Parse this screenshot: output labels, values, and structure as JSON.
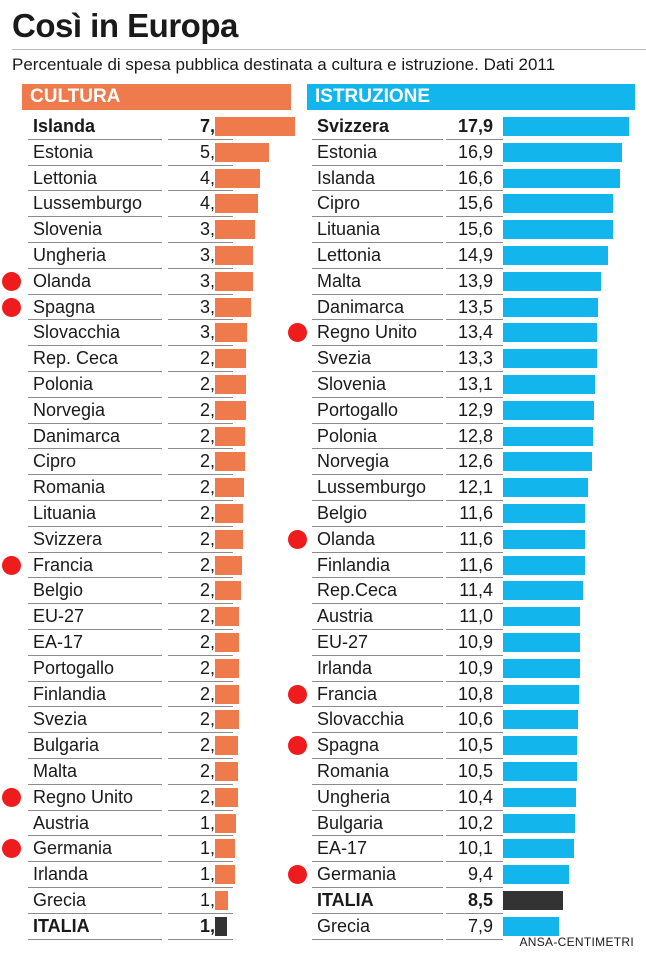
{
  "title": "Così in Europa",
  "subtitle": "Percentuale di spesa pubblica destinata a cultura e istruzione. Dati 2011",
  "source": "ANSA-CENTIMETRI",
  "colors": {
    "cultura": "#ef7a4c",
    "istruzione": "#12b6ec",
    "italia": "#333333",
    "marker": "#ee1c1c"
  },
  "chart_data": [
    {
      "type": "bar",
      "orientation": "horizontal",
      "header": "CULTURA",
      "xlim": [
        0,
        7.4
      ],
      "rows": [
        {
          "name": "Islanda",
          "value": 7.4,
          "label": "7,4",
          "bold": true,
          "marker": false
        },
        {
          "name": "Estonia",
          "value": 5.0,
          "label": "5,0",
          "bold": false,
          "marker": false
        },
        {
          "name": "Lettonia",
          "value": 4.2,
          "label": "4,2",
          "bold": false,
          "marker": false
        },
        {
          "name": "Lussemburgo",
          "value": 4.0,
          "label": "4,0",
          "bold": false,
          "marker": false
        },
        {
          "name": "Slovenia",
          "value": 3.7,
          "label": "3,7",
          "bold": false,
          "marker": false
        },
        {
          "name": "Ungheria",
          "value": 3.5,
          "label": "3,5",
          "bold": false,
          "marker": false
        },
        {
          "name": "Olanda",
          "value": 3.5,
          "label": "3,5",
          "bold": false,
          "marker": true
        },
        {
          "name": "Spagna",
          "value": 3.3,
          "label": "3,3",
          "bold": false,
          "marker": true
        },
        {
          "name": "Slovacchia",
          "value": 3.0,
          "label": "3,0",
          "bold": false,
          "marker": false
        },
        {
          "name": "Rep. Ceca",
          "value": 2.9,
          "label": "2,9",
          "bold": false,
          "marker": false
        },
        {
          "name": "Polonia",
          "value": 2.9,
          "label": "2,9",
          "bold": false,
          "marker": false
        },
        {
          "name": "Norvegia",
          "value": 2.9,
          "label": "2,9",
          "bold": false,
          "marker": false
        },
        {
          "name": "Danimarca",
          "value": 2.8,
          "label": "2,8",
          "bold": false,
          "marker": false
        },
        {
          "name": "Cipro",
          "value": 2.8,
          "label": "2,8",
          "bold": false,
          "marker": false
        },
        {
          "name": "Romania",
          "value": 2.7,
          "label": "2,7",
          "bold": false,
          "marker": false
        },
        {
          "name": "Lituania",
          "value": 2.6,
          "label": "2,6",
          "bold": false,
          "marker": false
        },
        {
          "name": "Svizzera",
          "value": 2.6,
          "label": "2,6",
          "bold": false,
          "marker": false
        },
        {
          "name": "Francia",
          "value": 2.5,
          "label": "2,5",
          "bold": false,
          "marker": true
        },
        {
          "name": "Belgio",
          "value": 2.4,
          "label": "2,4",
          "bold": false,
          "marker": false
        },
        {
          "name": "EU-27",
          "value": 2.2,
          "label": "2,2",
          "bold": false,
          "marker": false
        },
        {
          "name": "EA-17",
          "value": 2.2,
          "label": "2,2",
          "bold": false,
          "marker": false
        },
        {
          "name": "Portogallo",
          "value": 2.2,
          "label": "2,2",
          "bold": false,
          "marker": false
        },
        {
          "name": "Finlandia",
          "value": 2.2,
          "label": "2,2",
          "bold": false,
          "marker": false
        },
        {
          "name": "Svezia",
          "value": 2.2,
          "label": "2,2",
          "bold": false,
          "marker": false
        },
        {
          "name": "Bulgaria",
          "value": 2.1,
          "label": "2,1",
          "bold": false,
          "marker": false
        },
        {
          "name": "Malta",
          "value": 2.1,
          "label": "2,1",
          "bold": false,
          "marker": false
        },
        {
          "name": "Regno Unito",
          "value": 2.1,
          "label": "2,1",
          "bold": false,
          "marker": true
        },
        {
          "name": "Austria",
          "value": 1.9,
          "label": "1,9",
          "bold": false,
          "marker": false
        },
        {
          "name": "Germania",
          "value": 1.8,
          "label": "1,8",
          "bold": false,
          "marker": true
        },
        {
          "name": "Irlanda",
          "value": 1.8,
          "label": "1,8",
          "bold": false,
          "marker": false
        },
        {
          "name": "Grecia",
          "value": 1.2,
          "label": "1,2",
          "bold": false,
          "marker": false
        },
        {
          "name": "ITALIA",
          "value": 1.1,
          "label": "1,1",
          "bold": true,
          "marker": false,
          "italia": true
        }
      ]
    },
    {
      "type": "bar",
      "orientation": "horizontal",
      "header": "ISTRUZIONE",
      "xlim": [
        0,
        17.9
      ],
      "rows": [
        {
          "name": "Svizzera",
          "value": 17.9,
          "label": "17,9",
          "bold": true,
          "marker": false
        },
        {
          "name": "Estonia",
          "value": 16.9,
          "label": "16,9",
          "bold": false,
          "marker": false
        },
        {
          "name": "Islanda",
          "value": 16.6,
          "label": "16,6",
          "bold": false,
          "marker": false
        },
        {
          "name": "Cipro",
          "value": 15.6,
          "label": "15,6",
          "bold": false,
          "marker": false
        },
        {
          "name": "Lituania",
          "value": 15.6,
          "label": "15,6",
          "bold": false,
          "marker": false
        },
        {
          "name": "Lettonia",
          "value": 14.9,
          "label": "14,9",
          "bold": false,
          "marker": false
        },
        {
          "name": "Malta",
          "value": 13.9,
          "label": "13,9",
          "bold": false,
          "marker": false
        },
        {
          "name": "Danimarca",
          "value": 13.5,
          "label": "13,5",
          "bold": false,
          "marker": false
        },
        {
          "name": "Regno Unito",
          "value": 13.4,
          "label": "13,4",
          "bold": false,
          "marker": true
        },
        {
          "name": "Svezia",
          "value": 13.3,
          "label": "13,3",
          "bold": false,
          "marker": false
        },
        {
          "name": "Slovenia",
          "value": 13.1,
          "label": "13,1",
          "bold": false,
          "marker": false
        },
        {
          "name": "Portogallo",
          "value": 12.9,
          "label": "12,9",
          "bold": false,
          "marker": false
        },
        {
          "name": "Polonia",
          "value": 12.8,
          "label": "12,8",
          "bold": false,
          "marker": false
        },
        {
          "name": "Norvegia",
          "value": 12.6,
          "label": "12,6",
          "bold": false,
          "marker": false
        },
        {
          "name": "Lussemburgo",
          "value": 12.1,
          "label": "12,1",
          "bold": false,
          "marker": false
        },
        {
          "name": "Belgio",
          "value": 11.6,
          "label": "11,6",
          "bold": false,
          "marker": false
        },
        {
          "name": "Olanda",
          "value": 11.6,
          "label": "11,6",
          "bold": false,
          "marker": true
        },
        {
          "name": "Finlandia",
          "value": 11.6,
          "label": "11,6",
          "bold": false,
          "marker": false
        },
        {
          "name": "Rep.Ceca",
          "value": 11.4,
          "label": "11,4",
          "bold": false,
          "marker": false
        },
        {
          "name": "Austria",
          "value": 11.0,
          "label": "11,0",
          "bold": false,
          "marker": false
        },
        {
          "name": "EU-27",
          "value": 10.9,
          "label": "10,9",
          "bold": false,
          "marker": false
        },
        {
          "name": "Irlanda",
          "value": 10.9,
          "label": "10,9",
          "bold": false,
          "marker": false
        },
        {
          "name": "Francia",
          "value": 10.8,
          "label": "10,8",
          "bold": false,
          "marker": true
        },
        {
          "name": "Slovacchia",
          "value": 10.6,
          "label": "10,6",
          "bold": false,
          "marker": false
        },
        {
          "name": "Spagna",
          "value": 10.5,
          "label": "10,5",
          "bold": false,
          "marker": true
        },
        {
          "name": "Romania",
          "value": 10.5,
          "label": "10,5",
          "bold": false,
          "marker": false
        },
        {
          "name": "Ungheria",
          "value": 10.4,
          "label": "10,4",
          "bold": false,
          "marker": false
        },
        {
          "name": "Bulgaria",
          "value": 10.2,
          "label": "10,2",
          "bold": false,
          "marker": false
        },
        {
          "name": "EA-17",
          "value": 10.1,
          "label": "10,1",
          "bold": false,
          "marker": false
        },
        {
          "name": "Germania",
          "value": 9.4,
          "label": "9,4",
          "bold": false,
          "marker": true
        },
        {
          "name": "ITALIA",
          "value": 8.5,
          "label": "8,5",
          "bold": true,
          "marker": false,
          "italia": true
        },
        {
          "name": "Grecia",
          "value": 7.9,
          "label": "7,9",
          "bold": false,
          "marker": false
        }
      ]
    }
  ]
}
